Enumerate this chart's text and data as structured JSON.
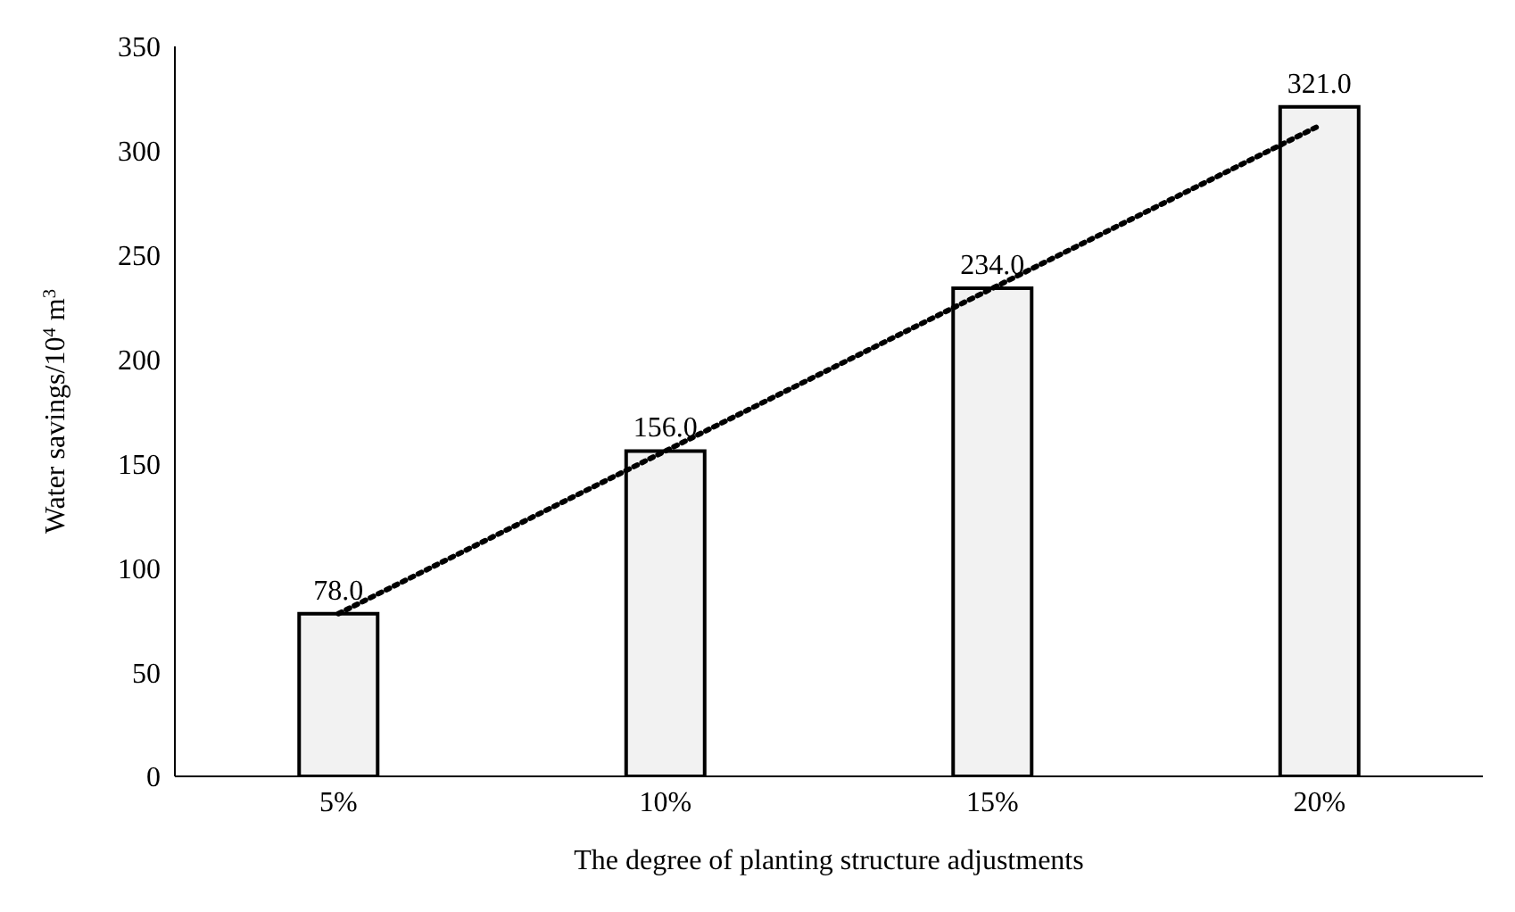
{
  "chart_data": {
    "type": "bar",
    "xlabel": "The degree of planting structure adjustments",
    "ylabel": "Water savings/10$^{4}$ m$^{3}$",
    "categories": [
      "5%",
      "10%",
      "15%",
      "20%"
    ],
    "ylim": [
      0,
      350
    ],
    "yticks": [
      0,
      50,
      100,
      150,
      200,
      250,
      300,
      350
    ],
    "series": [
      {
        "color": "#f2f2f2",
        "values": [
          78,
          156,
          234,
          321
        ],
        "value_labels": [
          "78.0",
          "156.0",
          "234.0",
          "321.0"
        ]
      },
      {
        "type": "line",
        "color": "#000000",
        "values": [
          78,
          156,
          234,
          312
        ],
        "line_style": "dotted",
        "marker": "none"
      }
    ]
  }
}
